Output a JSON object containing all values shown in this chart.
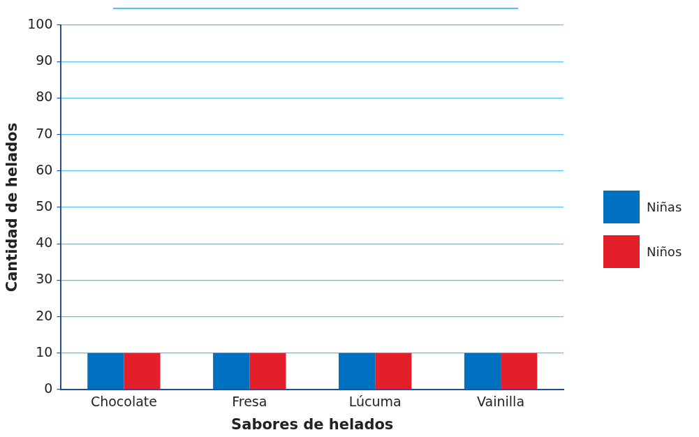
{
  "chart_data": {
    "type": "bar",
    "xlabel": "Sabores de helados",
    "ylabel": "Cantidad de helados",
    "categories": [
      "Chocolate",
      "Fresa",
      "Lúcuma",
      "Vainilla"
    ],
    "series": [
      {
        "name": "Niñas",
        "color": "#0070c0",
        "values": [
          10,
          10,
          10,
          10
        ]
      },
      {
        "name": "Niños",
        "color": "#e3202a",
        "values": [
          10,
          10,
          10,
          10
        ]
      }
    ],
    "ylim": [
      0,
      100
    ],
    "yticks": [
      0,
      10,
      20,
      30,
      40,
      50,
      60,
      70,
      80,
      90,
      100
    ],
    "grid": "y",
    "legend": "right"
  }
}
